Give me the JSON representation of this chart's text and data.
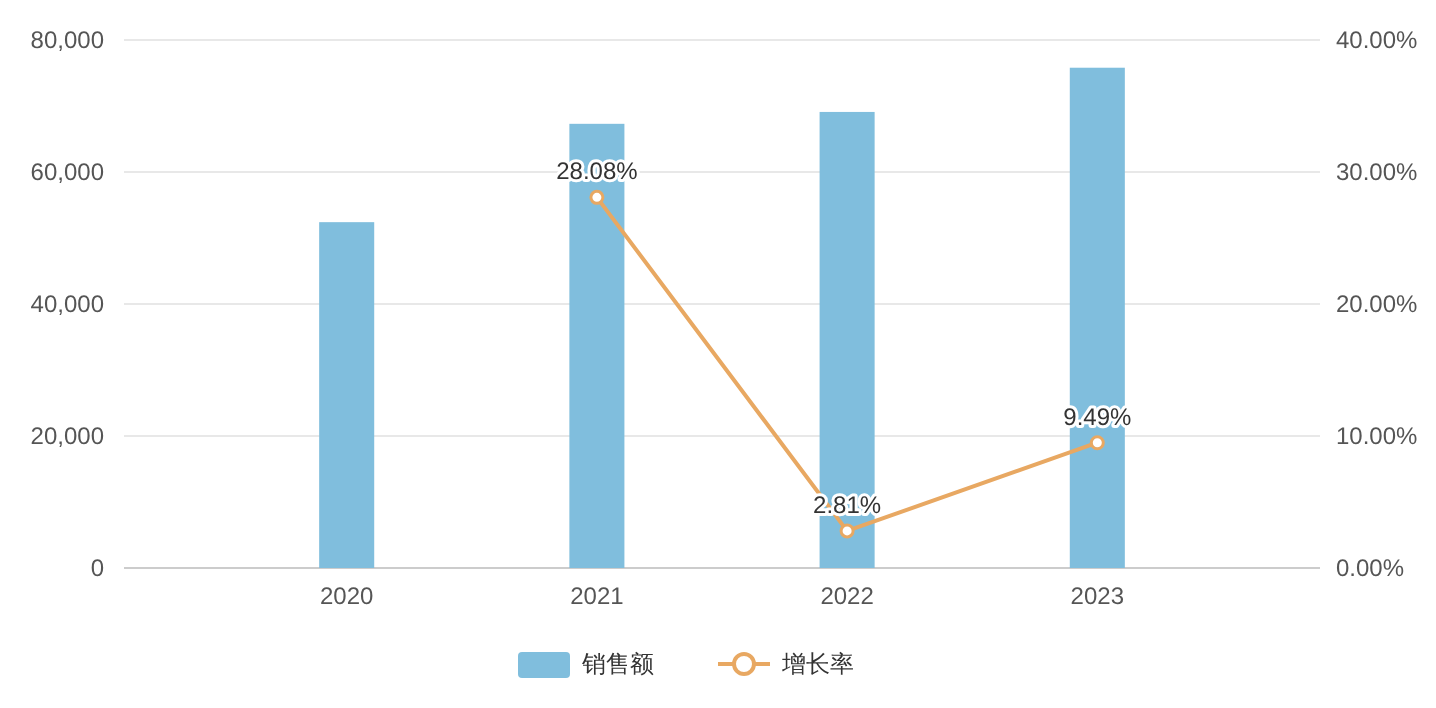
{
  "chart_data": {
    "type": "bar",
    "categories": [
      "2020",
      "2021",
      "2022",
      "2023"
    ],
    "series": [
      {
        "name": "销售额",
        "type": "bar",
        "color": "#80bedd",
        "values": [
          52400,
          67300,
          69100,
          75800
        ]
      },
      {
        "name": "增长率",
        "type": "line",
        "axis": "y2",
        "color": "#e8a862",
        "values": [
          null,
          28.08,
          2.81,
          9.49
        ],
        "value_labels": [
          null,
          "28.08%",
          "2.81%",
          "9.49%"
        ]
      }
    ],
    "ylim": [
      0,
      80000
    ],
    "yticks": [
      {
        "value": 0,
        "label": "0"
      },
      {
        "value": 20000,
        "label": "20,000"
      },
      {
        "value": 40000,
        "label": "40,000"
      },
      {
        "value": 60000,
        "label": "60,000"
      },
      {
        "value": 80000,
        "label": "80,000"
      }
    ],
    "y2lim": [
      0,
      40
    ],
    "y2ticks": [
      {
        "value": 0,
        "label": "0.00%"
      },
      {
        "value": 10,
        "label": "10.00%"
      },
      {
        "value": 20,
        "label": "20.00%"
      },
      {
        "value": 30,
        "label": "30.00%"
      },
      {
        "value": 40,
        "label": "40.00%"
      }
    ],
    "grid": "y",
    "legend": "bottom",
    "marker": "circle"
  }
}
